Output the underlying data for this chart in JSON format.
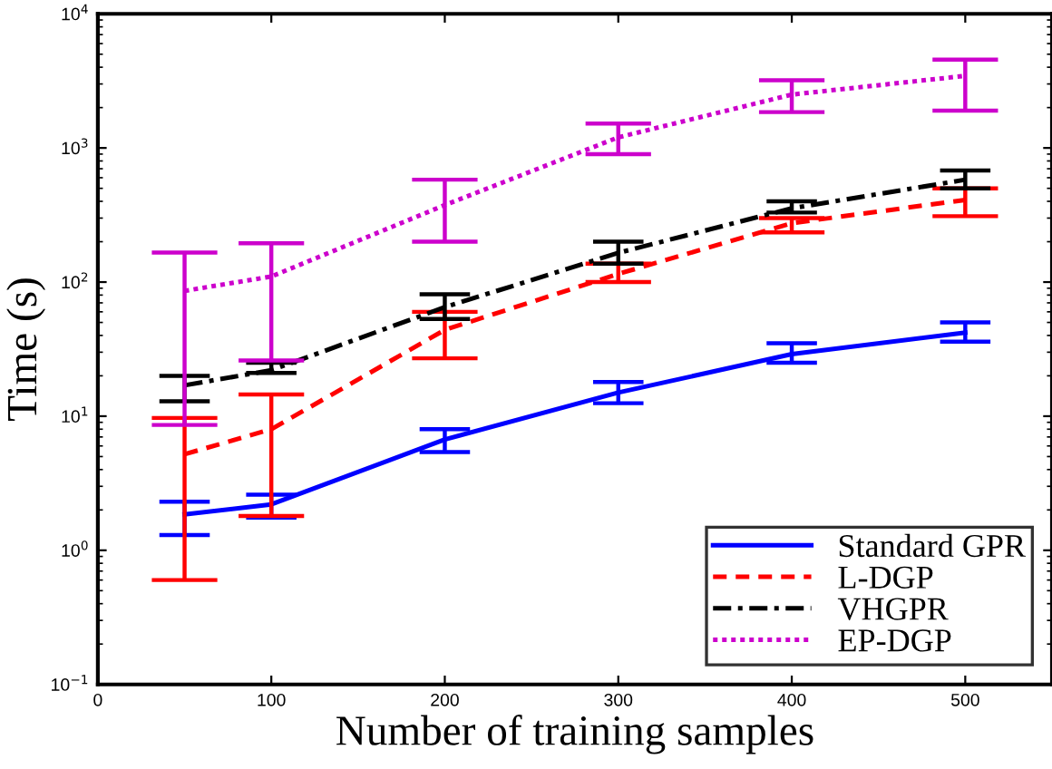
{
  "chart_data": {
    "type": "line",
    "xlabel": "Number of training samples",
    "ylabel": "Time (s)",
    "log": "y",
    "x": [
      50,
      100,
      200,
      300,
      400,
      500
    ],
    "xlim": [
      0,
      550
    ],
    "xticks": [
      0,
      100,
      200,
      300,
      400,
      500
    ],
    "ylim": [
      0.1,
      10000
    ],
    "yticks": [
      {
        "value": 0.1,
        "label": "10$^{−1}$"
      },
      {
        "value": 1,
        "label": "10$^{0}$"
      },
      {
        "value": 10,
        "label": "10$^{1}$"
      },
      {
        "value": 100,
        "label": "10$^{2}$"
      },
      {
        "value": 1000,
        "label": "10$^{3}$"
      },
      {
        "value": 10000,
        "label": "10$^{4}$"
      }
    ],
    "grid": false,
    "legend": "bottom right",
    "marker": "none",
    "series": [
      {
        "name": "Standard GPR",
        "color": "#0000ff",
        "line_style": "solid",
        "values": [
          1.85,
          2.2,
          6.7,
          15,
          29,
          42
        ],
        "errors": [
          [
            1.3,
            2.3
          ],
          [
            1.75,
            2.6
          ],
          [
            5.4,
            8
          ],
          [
            12.5,
            18
          ],
          [
            25,
            35
          ],
          [
            36,
            50
          ]
        ]
      },
      {
        "name": "L-DGP",
        "color": "#ff0000",
        "line_style": "dashed",
        "values": [
          5.2,
          8,
          44,
          115,
          275,
          410
        ],
        "errors": [
          [
            0.6,
            9.7
          ],
          [
            1.8,
            14.5
          ],
          [
            27,
            60
          ],
          [
            100,
            137
          ],
          [
            235,
            300
          ],
          [
            310,
            500
          ]
        ]
      },
      {
        "name": "VHGPR",
        "color": "#000000",
        "line_style": "dashdot",
        "values": [
          17,
          22,
          65,
          165,
          355,
          580
        ],
        "errors": [
          [
            12.9,
            20
          ],
          [
            21,
            25
          ],
          [
            53,
            81
          ],
          [
            137,
            200
          ],
          [
            330,
            400
          ],
          [
            500,
            680
          ]
        ]
      },
      {
        "name": "EP-DGP",
        "color": "#cc00cc",
        "line_style": "dotted",
        "values": [
          86,
          110,
          375,
          1200,
          2500,
          3450
        ],
        "errors": [
          [
            8.6,
            166
          ],
          [
            26,
            195
          ],
          [
            200,
            580
          ],
          [
            900,
            1520
          ],
          [
            1850,
            3200
          ],
          [
            1900,
            4550
          ]
        ]
      }
    ]
  }
}
